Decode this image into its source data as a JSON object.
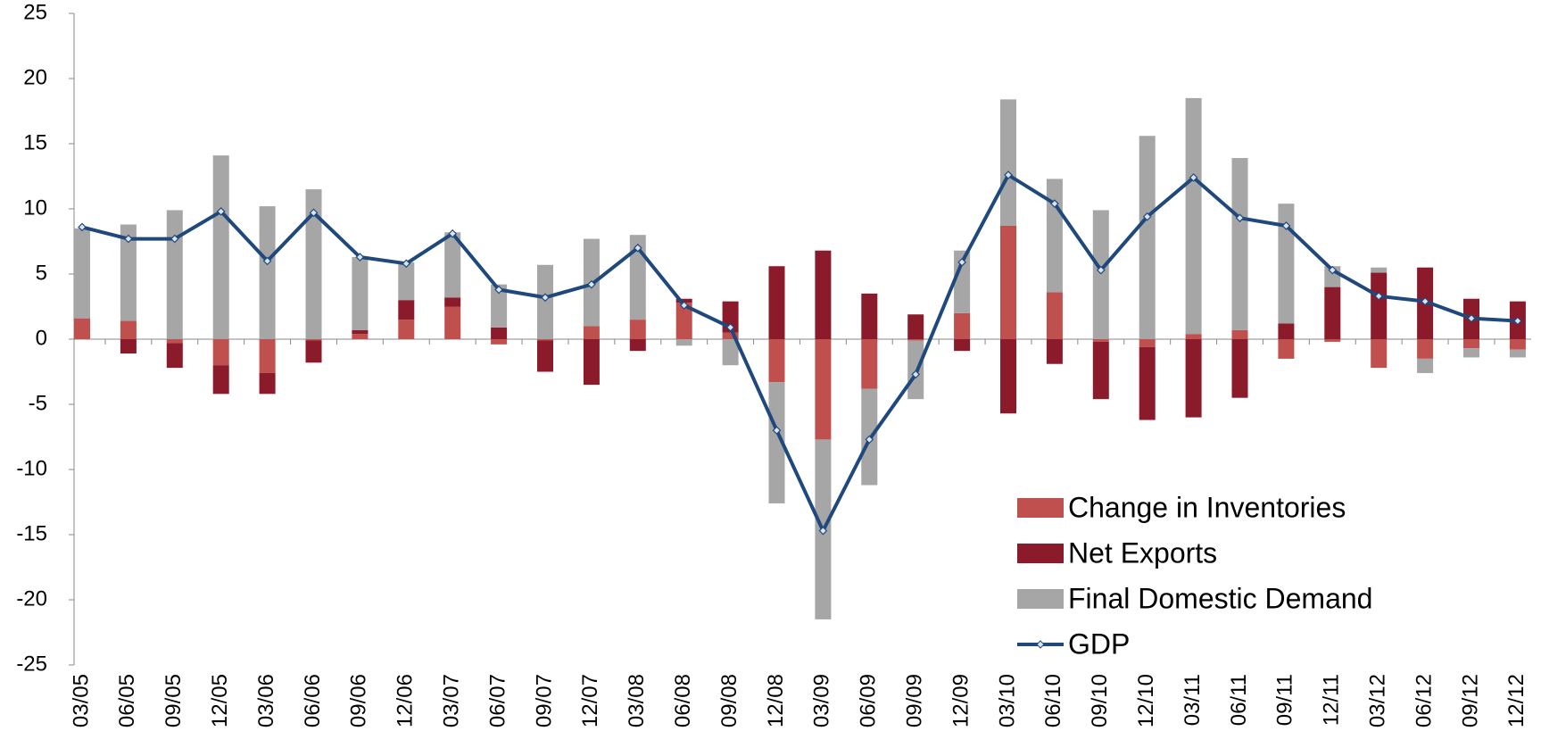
{
  "chart_data": {
    "type": "bar",
    "stacked": true,
    "categories": [
      "03/05",
      "06/05",
      "09/05",
      "12/05",
      "03/06",
      "06/06",
      "09/06",
      "12/06",
      "03/07",
      "06/07",
      "09/07",
      "12/07",
      "03/08",
      "06/08",
      "09/08",
      "12/08",
      "03/09",
      "06/09",
      "09/09",
      "12/09",
      "03/10",
      "06/10",
      "09/10",
      "12/10",
      "03/11",
      "06/11",
      "09/11",
      "12/11",
      "03/12",
      "06/12",
      "09/12",
      "12/12"
    ],
    "series": [
      {
        "name": "Change in Inventories",
        "type": "bar",
        "color": "#c0504d",
        "values": [
          1.6,
          1.4,
          -0.3,
          -2.0,
          -2.6,
          -0.1,
          0.4,
          1.5,
          2.5,
          -0.4,
          -0.1,
          1.0,
          1.5,
          2.8,
          0.5,
          -3.3,
          -7.7,
          -3.8,
          -0.1,
          2.0,
          8.7,
          3.6,
          -0.2,
          -0.6,
          0.4,
          0.7,
          -1.5,
          -0.2,
          -2.2,
          -1.5,
          -0.7,
          -0.8
        ]
      },
      {
        "name": "Net Exports",
        "type": "bar",
        "color": "#8b1a2b",
        "values": [
          0,
          -1.1,
          -1.9,
          -2.2,
          -1.6,
          -1.7,
          0.3,
          1.5,
          0.7,
          0.9,
          -2.4,
          -3.5,
          -0.9,
          0.3,
          2.4,
          5.6,
          6.8,
          3.5,
          1.9,
          -0.9,
          -5.7,
          -1.9,
          -4.4,
          -5.6,
          -6.0,
          -4.5,
          1.2,
          4.0,
          5.1,
          5.5,
          3.1,
          2.9
        ]
      },
      {
        "name": "Final Domestic Demand",
        "type": "bar",
        "color": "#a6a6a6",
        "values": [
          6.9,
          7.4,
          9.9,
          14.1,
          10.2,
          11.5,
          5.6,
          2.9,
          5.0,
          3.3,
          5.7,
          6.7,
          6.5,
          -0.5,
          -2.0,
          -9.3,
          -13.8,
          -7.4,
          -4.5,
          4.8,
          9.7,
          8.7,
          9.9,
          15.6,
          18.1,
          13.2,
          9.2,
          1.6,
          0.4,
          -1.1,
          -0.7,
          -0.6
        ]
      },
      {
        "name": "GDP",
        "type": "line",
        "color": "#1f497d",
        "values": [
          8.6,
          7.7,
          7.7,
          9.8,
          6.0,
          9.7,
          6.3,
          5.8,
          8.1,
          3.8,
          3.2,
          4.2,
          7.0,
          2.6,
          0.9,
          -7.0,
          -14.7,
          -7.7,
          -2.7,
          5.9,
          12.6,
          10.4,
          5.3,
          9.4,
          12.4,
          9.3,
          8.7,
          5.3,
          3.3,
          2.9,
          1.6,
          1.4
        ]
      }
    ],
    "ylim": [
      -25,
      25
    ],
    "yticks": [
      -25,
      -20,
      -15,
      -10,
      -5,
      0,
      5,
      10,
      15,
      20,
      25
    ],
    "grid": false
  }
}
